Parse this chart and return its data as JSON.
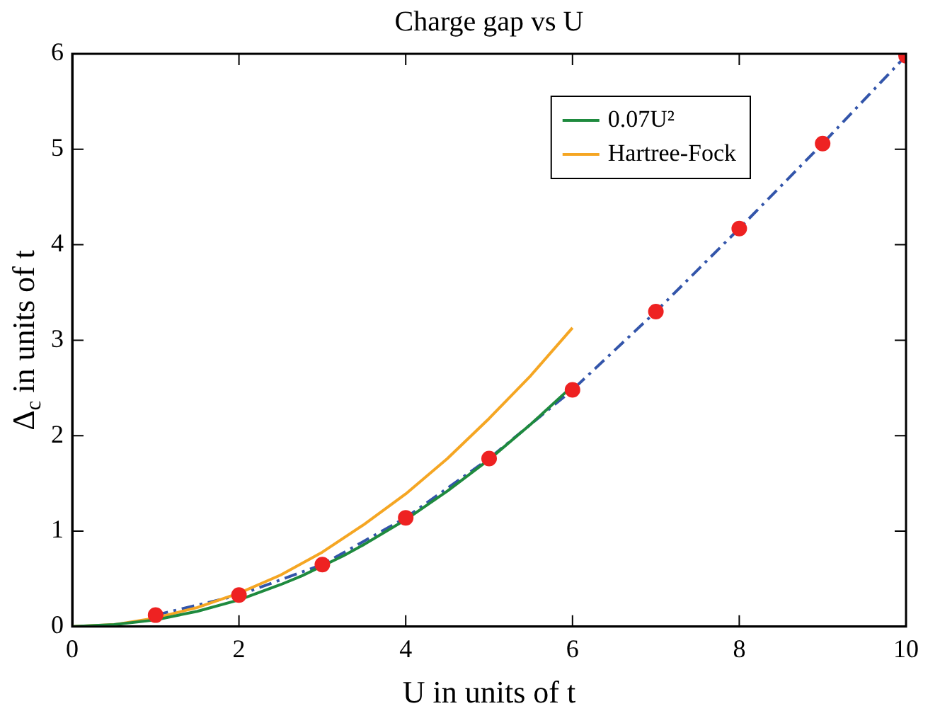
{
  "chart_data": {
    "type": "line",
    "title": "Charge gap vs U",
    "xlabel": "U in units of t",
    "ylabel": "Δ$_{c}$ in units of t",
    "xlim": [
      0,
      10
    ],
    "xticks": [
      0,
      2,
      4,
      6,
      8,
      10
    ],
    "ylim": [
      0,
      6
    ],
    "yticks": [
      0,
      1,
      2,
      3,
      4,
      5,
      6
    ],
    "grid": false,
    "legend": "top right",
    "series": [
      {
        "type": "line",
        "name": "0.07U²",
        "color": "#1e8a3e",
        "line_style": "solid",
        "marker": "none",
        "x": [
          0,
          0.5,
          1,
          1.5,
          2,
          2.5,
          2.75,
          3.25,
          3.5,
          4,
          4.5,
          5,
          5.5,
          6
        ],
        "values": [
          0,
          0.02,
          0.07,
          0.16,
          0.28,
          0.44,
          0.53,
          0.74,
          0.86,
          1.12,
          1.42,
          1.75,
          2.12,
          2.52
        ]
      },
      {
        "type": "line",
        "name": "Hartree-Fock",
        "color": "#f5a623",
        "line_style": "solid",
        "marker": "none",
        "x": [
          0,
          0.5,
          1,
          1.5,
          2,
          2.5,
          3,
          3.5,
          4,
          4.5,
          5,
          5.5,
          6
        ],
        "values": [
          0,
          0.02,
          0.09,
          0.2,
          0.35,
          0.54,
          0.78,
          1.07,
          1.39,
          1.76,
          2.18,
          2.63,
          3.13
        ]
      },
      {
        "type": "line",
        "color": "#3355aa",
        "line_style": "dashed",
        "marker": "none",
        "x": [
          1,
          2,
          3,
          4,
          5,
          6,
          7,
          8,
          9,
          10
        ],
        "values": [
          0.12,
          0.33,
          0.65,
          1.14,
          1.76,
          2.48,
          3.3,
          4.17,
          5.06,
          5.98
        ]
      },
      {
        "type": "scatter",
        "color": "#ee2222",
        "marker": "circle",
        "x": [
          1,
          2,
          3,
          4,
          5,
          6,
          7,
          8,
          9,
          10
        ],
        "values": [
          0.12,
          0.33,
          0.65,
          1.14,
          1.76,
          2.48,
          3.3,
          4.17,
          5.06,
          5.98
        ]
      }
    ]
  }
}
